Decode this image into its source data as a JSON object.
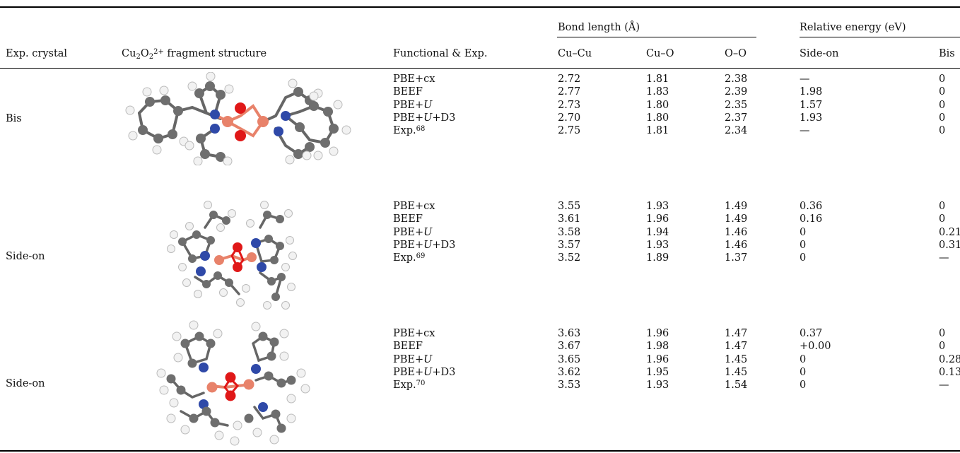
{
  "header": {
    "exp_crystal": "Exp. crystal",
    "fragment_prefix": "Cu",
    "fragment_sub1": "2",
    "fragment_o": "O",
    "fragment_sub2": "2",
    "fragment_sup": "2+",
    "fragment_suffix": " fragment structure",
    "functional": "Functional & Exp.",
    "bond_group": "Bond length (Å)",
    "energy_group": "Relative energy (eV)",
    "cucu": "Cu–Cu",
    "cuo": "Cu–O",
    "oo": "O–O",
    "sideon": "Side-on",
    "bis": "Bis"
  },
  "groups": [
    {
      "crystal": "Bis",
      "rows": [
        {
          "fn": "PBE+cx",
          "italic_u": false,
          "d3": false,
          "ref": "",
          "cucu": "2.72",
          "cuo": "1.81",
          "oo": "2.38",
          "sideon": "—",
          "bis": "0"
        },
        {
          "fn": "BEEF",
          "italic_u": false,
          "d3": false,
          "ref": "",
          "cucu": "2.77",
          "cuo": "1.83",
          "oo": "2.39",
          "sideon": "1.98",
          "bis": "0"
        },
        {
          "fn": "PBE+",
          "italic_u": true,
          "d3": false,
          "ref": "",
          "cucu": "2.73",
          "cuo": "1.80",
          "oo": "2.35",
          "sideon": "1.57",
          "bis": "0"
        },
        {
          "fn": "PBE+",
          "italic_u": true,
          "d3": true,
          "ref": "",
          "cucu": "2.70",
          "cuo": "1.80",
          "oo": "2.37",
          "sideon": "1.93",
          "bis": "0"
        },
        {
          "fn": "Exp.",
          "italic_u": false,
          "d3": false,
          "ref": "68",
          "cucu": "2.75",
          "cuo": "1.81",
          "oo": "2.34",
          "sideon": "—",
          "bis": "0"
        }
      ]
    },
    {
      "crystal": "Side-on",
      "rows": [
        {
          "fn": "PBE+cx",
          "italic_u": false,
          "d3": false,
          "ref": "",
          "cucu": "3.55",
          "cuo": "1.93",
          "oo": "1.49",
          "sideon": "0.36",
          "bis": "0"
        },
        {
          "fn": "BEEF",
          "italic_u": false,
          "d3": false,
          "ref": "",
          "cucu": "3.61",
          "cuo": "1.96",
          "oo": "1.49",
          "sideon": "0.16",
          "bis": "0"
        },
        {
          "fn": "PBE+",
          "italic_u": true,
          "d3": false,
          "ref": "",
          "cucu": "3.58",
          "cuo": "1.94",
          "oo": "1.46",
          "sideon": "0",
          "bis": "0.21"
        },
        {
          "fn": "PBE+",
          "italic_u": true,
          "d3": true,
          "ref": "",
          "cucu": "3.57",
          "cuo": "1.93",
          "oo": "1.46",
          "sideon": "0",
          "bis": "0.31"
        },
        {
          "fn": "Exp.",
          "italic_u": false,
          "d3": false,
          "ref": "69",
          "cucu": "3.52",
          "cuo": "1.89",
          "oo": "1.37",
          "sideon": "0",
          "bis": "—"
        }
      ]
    },
    {
      "crystal": "Side-on",
      "rows": [
        {
          "fn": "PBE+cx",
          "italic_u": false,
          "d3": false,
          "ref": "",
          "cucu": "3.63",
          "cuo": "1.96",
          "oo": "1.47",
          "sideon": "0.37",
          "bis": "0"
        },
        {
          "fn": "BEEF",
          "italic_u": false,
          "d3": false,
          "ref": "",
          "cucu": "3.67",
          "cuo": "1.98",
          "oo": "1.47",
          "sideon": "+0.00",
          "bis": "0"
        },
        {
          "fn": "PBE+",
          "italic_u": true,
          "d3": false,
          "ref": "",
          "cucu": "3.65",
          "cuo": "1.96",
          "oo": "1.45",
          "sideon": "0",
          "bis": "0.28"
        },
        {
          "fn": "PBE+",
          "italic_u": true,
          "d3": true,
          "ref": "",
          "cucu": "3.62",
          "cuo": "1.95",
          "oo": "1.45",
          "sideon": "0",
          "bis": "0.13"
        },
        {
          "fn": "Exp.",
          "italic_u": false,
          "d3": false,
          "ref": "70",
          "cucu": "3.53",
          "cuo": "1.93",
          "oo": "1.54",
          "sideon": "0",
          "bis": "—"
        }
      ]
    }
  ],
  "colors": {
    "carbon": "#6e6e6e",
    "hydrogen": "#f2f2f2",
    "nitrogen": "#2f49a8",
    "copper": "#e8826a",
    "oxygen": "#e01818",
    "rule": "#000000"
  }
}
